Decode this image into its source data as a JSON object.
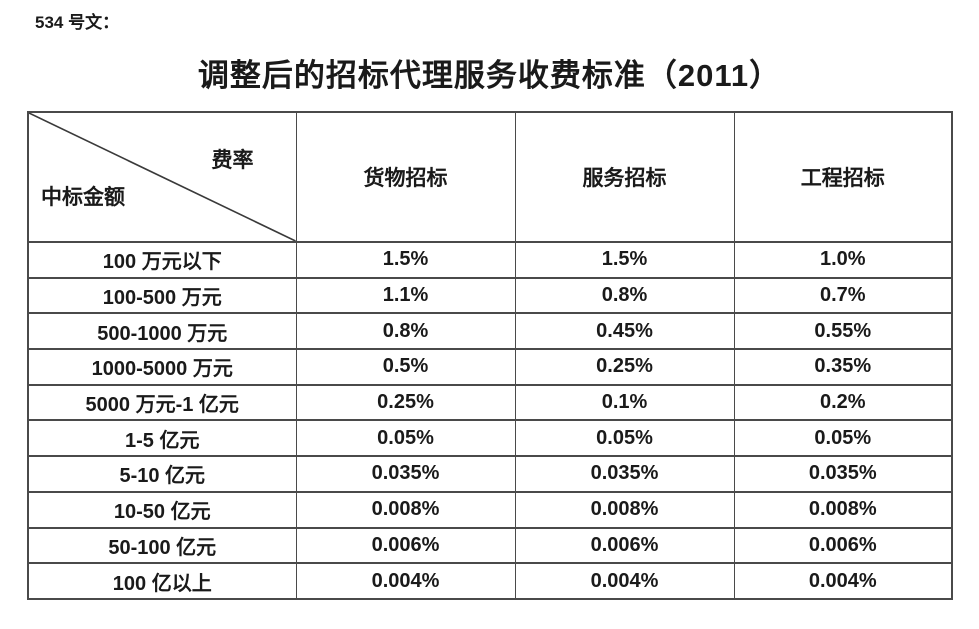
{
  "page": {
    "doc_label": "534 号文：",
    "title": "调整后的招标代理服务收费标准（2011）"
  },
  "table": {
    "corner_top_right": "费率",
    "corner_bottom_left": "中标金额",
    "columns": [
      "货物招标",
      "服务招标",
      "工程招标"
    ],
    "rows": [
      {
        "amount": "100 万元以下",
        "values": [
          "1.5%",
          "1.5%",
          "1.0%"
        ]
      },
      {
        "amount": "100-500 万元",
        "values": [
          "1.1%",
          "0.8%",
          "0.7%"
        ]
      },
      {
        "amount": "500-1000 万元",
        "values": [
          "0.8%",
          "0.45%",
          "0.55%"
        ]
      },
      {
        "amount": "1000-5000 万元",
        "values": [
          "0.5%",
          "0.25%",
          "0.35%"
        ]
      },
      {
        "amount": "5000 万元-1 亿元",
        "values": [
          "0.25%",
          "0.1%",
          "0.2%"
        ]
      },
      {
        "amount": "1-5 亿元",
        "values": [
          "0.05%",
          "0.05%",
          "0.05%"
        ]
      },
      {
        "amount": "5-10 亿元",
        "values": [
          "0.035%",
          "0.035%",
          "0.035%"
        ]
      },
      {
        "amount": "10-50 亿元",
        "values": [
          "0.008%",
          "0.008%",
          "0.008%"
        ]
      },
      {
        "amount": "50-100 亿元",
        "values": [
          "0.006%",
          "0.006%",
          "0.006%"
        ]
      },
      {
        "amount": "100 亿以上",
        "values": [
          "0.004%",
          "0.004%",
          "0.004%"
        ]
      }
    ]
  },
  "colors": {
    "text": "#1a1a1a",
    "border": "#4a4a4a",
    "background": "#ffffff"
  }
}
